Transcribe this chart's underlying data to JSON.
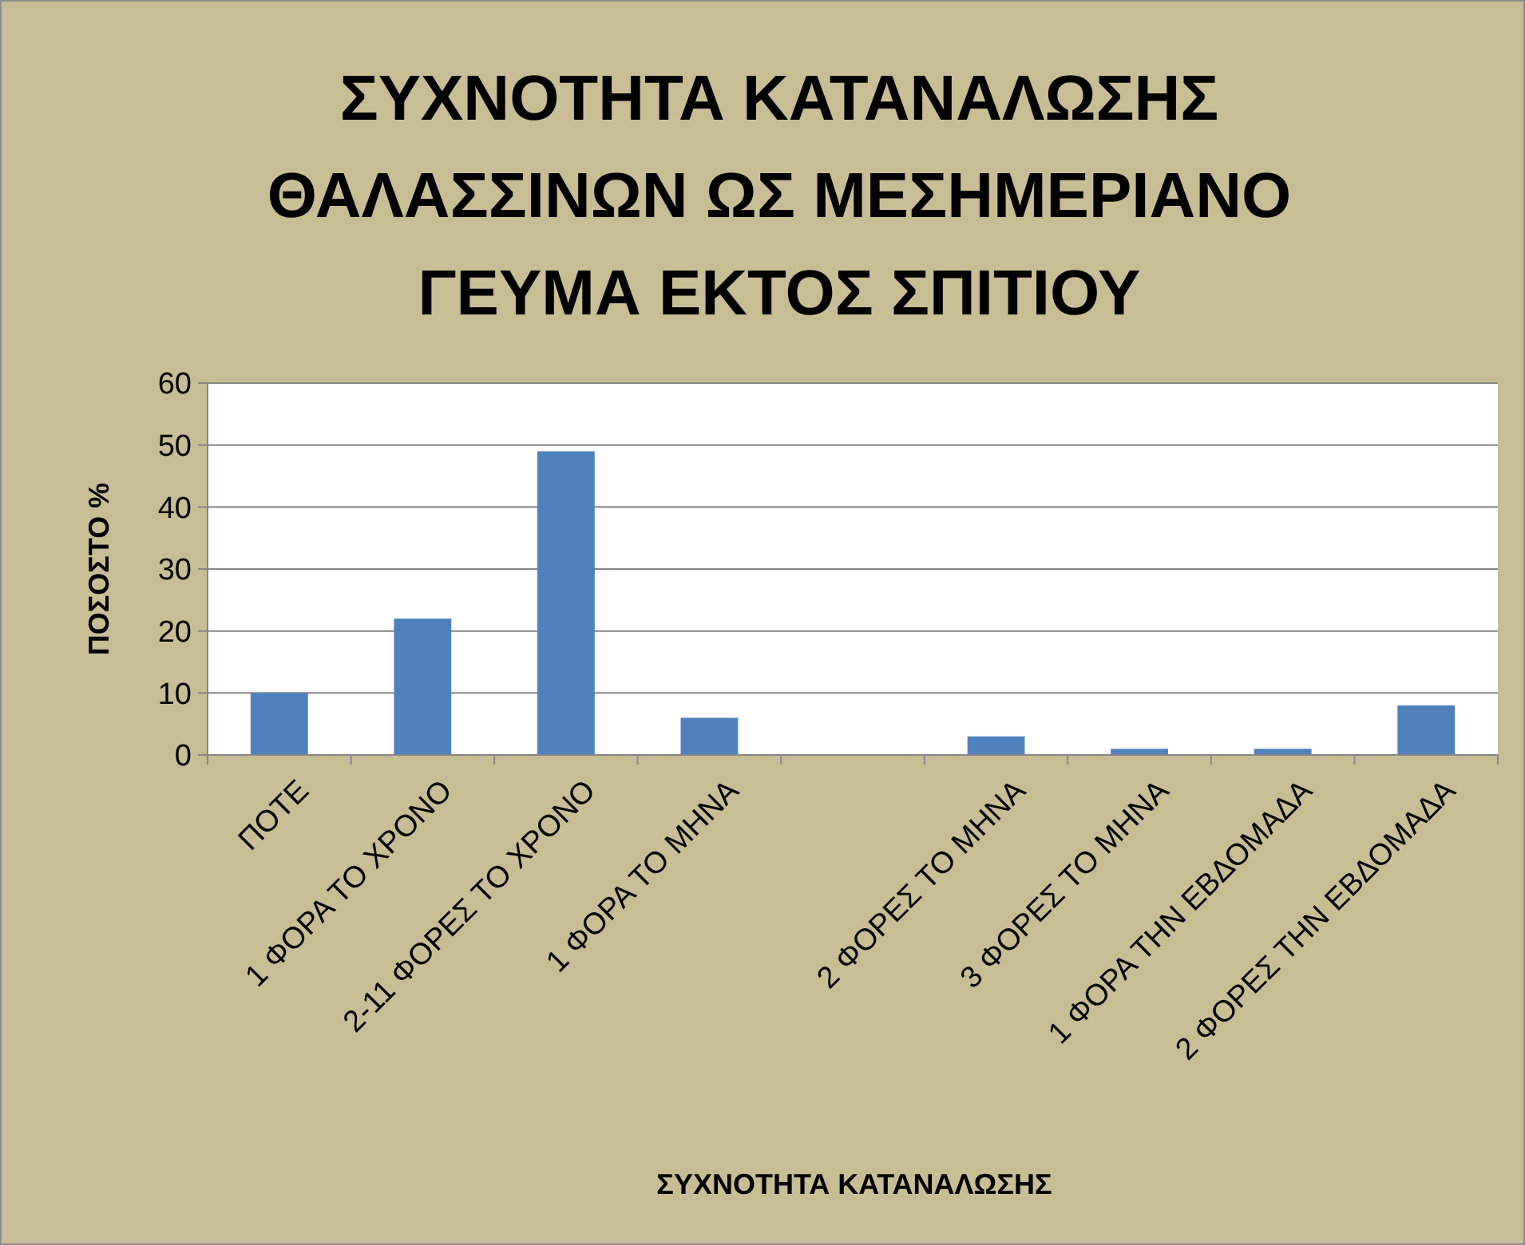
{
  "chart_data": {
    "type": "bar",
    "title": "ΣΥΧΝΟΤΗΤΑ ΚΑΤΑΝΑΛΩΣΗΣ\nΘΑΛΑΣΣΙΝΩΝ ΩΣ ΜΕΣΗΜΕΡΙΑΝΟ\nΓΕΥΜΑ ΕΚΤΟΣ ΣΠΙΤΙΟΥ",
    "xlabel": "ΣΥΧΝΟΤΗΤΑ ΚΑΤΑΝΑΛΩΣΗΣ",
    "ylabel": "ΠΟΣΟΣΤΟ %",
    "categories": [
      "ΠΟΤΕ",
      "1 ΦΟΡΑ ΤΟ ΧΡΟΝΟ",
      "2-11 ΦΟΡΕΣ ΤΟ ΧΡΟΝΟ",
      "1 ΦΟΡΑ ΤΟ ΜΗΝΑ",
      null,
      "2 ΦΟΡΕΣ ΤΟ ΜΗΝΑ",
      "3 ΦΟΡΕΣ ΤΟ ΜΗΝΑ",
      "1 ΦΟΡΑ ΤΗΝ ΕΒΔΟΜΑΔΑ",
      "2 ΦΟΡΕΣ ΤΗΝ ΕΒΔΟΜΑΔΑ"
    ],
    "values": [
      10,
      22,
      49,
      6,
      null,
      3,
      1,
      1,
      8
    ],
    "color": "#4f81bd",
    "ylim": [
      0,
      60
    ],
    "yticks": [
      0,
      10,
      20,
      30,
      40,
      50,
      60
    ],
    "grid": "y"
  }
}
